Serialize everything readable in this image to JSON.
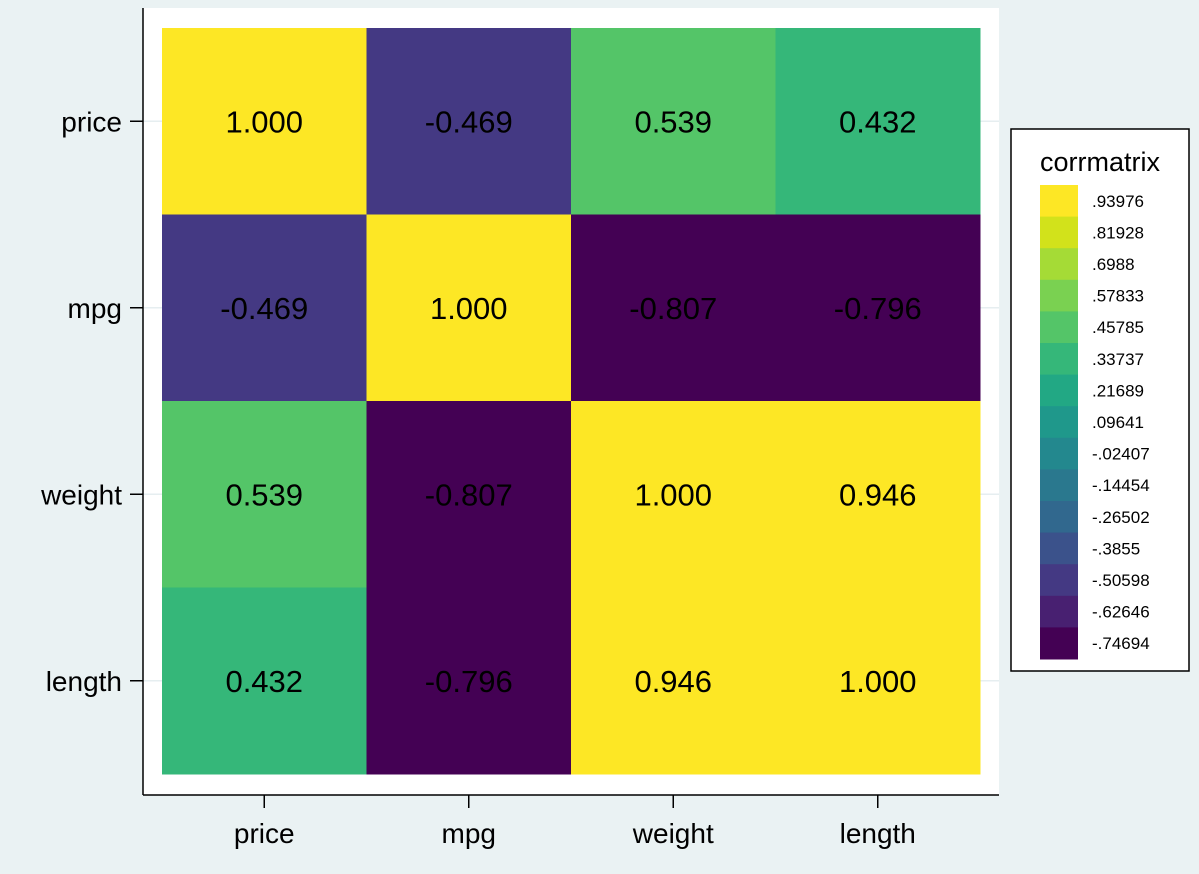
{
  "chart_data": {
    "type": "heatmap",
    "title": "",
    "xlabel": "",
    "ylabel": "",
    "x_categories": [
      "price",
      "mpg",
      "weight",
      "length"
    ],
    "y_categories": [
      "price",
      "mpg",
      "weight",
      "length"
    ],
    "values": [
      [
        1.0,
        -0.469,
        0.539,
        0.432
      ],
      [
        -0.469,
        1.0,
        -0.807,
        -0.796
      ],
      [
        0.539,
        -0.807,
        1.0,
        0.946
      ],
      [
        0.432,
        -0.796,
        0.946,
        1.0
      ]
    ],
    "cell_labels": [
      [
        "1.000",
        "-0.469",
        "0.539",
        "0.432"
      ],
      [
        "-0.469",
        "1.000",
        "-0.807",
        "-0.796"
      ],
      [
        "0.539",
        "-0.807",
        "1.000",
        "0.946"
      ],
      [
        "0.432",
        "-0.796",
        "0.946",
        "1.000"
      ]
    ],
    "grid": true,
    "legend": {
      "title": "corrmatrix",
      "placement": "right",
      "entries": [
        ".93976",
        ".81928",
        ".6988",
        ".57833",
        ".45785",
        ".33737",
        ".21689",
        ".09641",
        "-.02407",
        "-.14454",
        "-.26502",
        "-.3855",
        "-.50598",
        "-.62646",
        "-.74694"
      ],
      "colors": [
        "#fde725",
        "#d2e21b",
        "#a5db36",
        "#7ad151",
        "#54c568",
        "#35b779",
        "#22a884",
        "#1f988b",
        "#23888e",
        "#2a788e",
        "#31688e",
        "#3b528b",
        "#443983",
        "#482071",
        "#440154"
      ]
    }
  }
}
